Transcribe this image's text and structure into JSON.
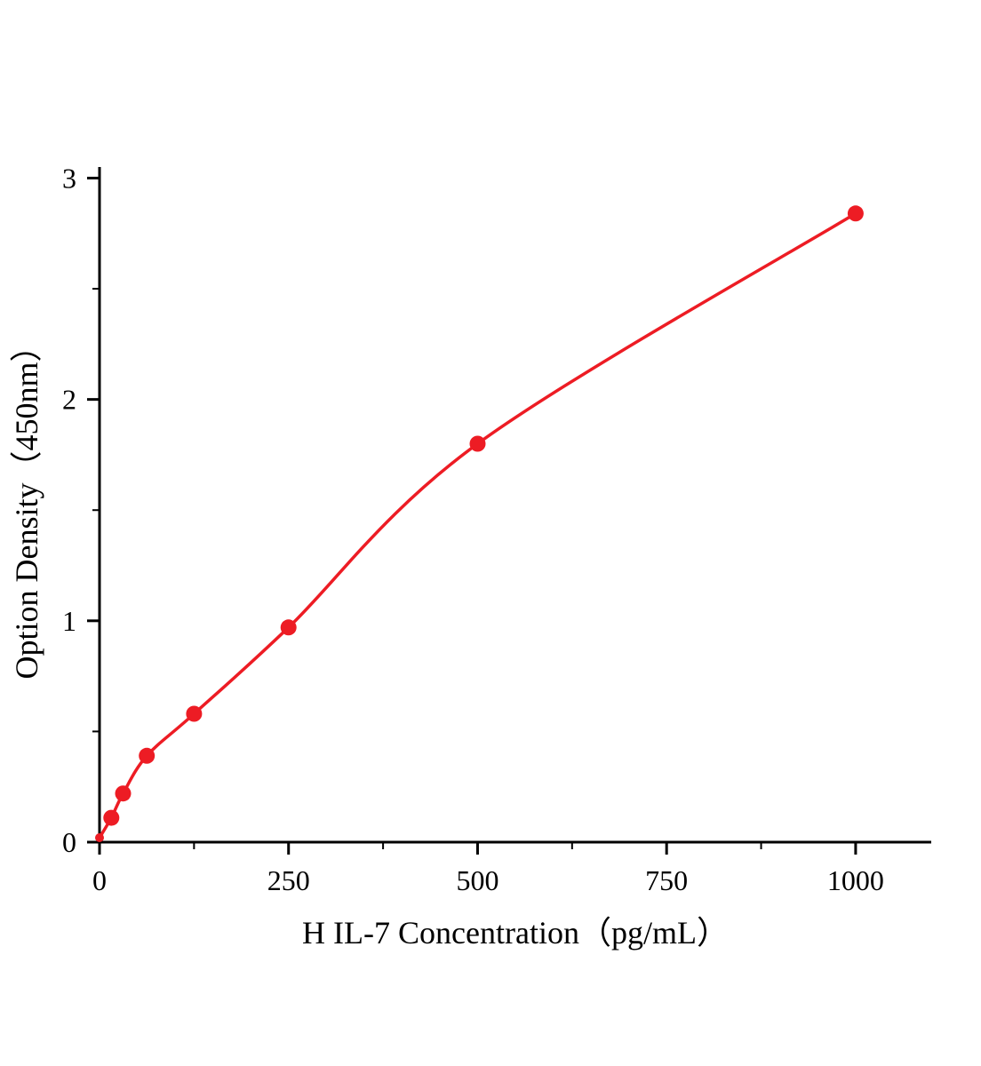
{
  "chart_data": {
    "type": "scatter",
    "title": "",
    "xlabel": "H IL-7 Concentration（pg/mL）",
    "ylabel": "Option Density（450nm）",
    "x": [
      0,
      15.6,
      31.2,
      62.5,
      125,
      250,
      500,
      1000
    ],
    "y": [
      0.02,
      0.11,
      0.22,
      0.39,
      0.58,
      0.97,
      1.8,
      2.84
    ],
    "curve": "smooth-through-points",
    "xlim": [
      0,
      1100
    ],
    "ylim": [
      0,
      3.05
    ],
    "x_ticks": [
      0,
      250,
      500,
      750,
      1000
    ],
    "y_ticks": [
      0,
      1,
      2,
      3
    ],
    "x_minor_ticks": [
      125,
      375,
      625,
      875
    ],
    "y_minor_ticks": [
      0.5,
      1.5,
      2.5
    ],
    "grid": false,
    "legend": "none",
    "colors": {
      "curve": "#ed1c24",
      "points": "#ed1c24",
      "axis": "#000000",
      "text": "#000000",
      "background": "#ffffff"
    }
  }
}
